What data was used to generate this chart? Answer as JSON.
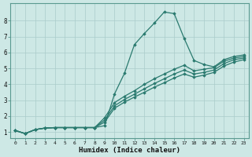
{
  "bg_color": "#cde8e5",
  "grid_color": "#aaccca",
  "line_color": "#2a7a6f",
  "line_width": 0.9,
  "marker": "D",
  "marker_size": 1.8,
  "xlabel": "Humidex (Indice chaleur)",
  "xlabel_fontsize": 6.5,
  "ytick_labels": [
    "1",
    "2",
    "3",
    "4",
    "5",
    "6",
    "7",
    "8"
  ],
  "ytick_vals": [
    1,
    2,
    3,
    4,
    5,
    6,
    7,
    8
  ],
  "xtick_vals": [
    0,
    1,
    2,
    3,
    4,
    5,
    6,
    7,
    8,
    9,
    10,
    11,
    12,
    13,
    14,
    15,
    16,
    17,
    18,
    19,
    20,
    21,
    22,
    23
  ],
  "xlim": [
    -0.5,
    23.5
  ],
  "ylim": [
    0.6,
    9.1
  ],
  "series": [
    [
      1.1,
      0.9,
      1.15,
      1.25,
      1.28,
      1.28,
      1.28,
      1.28,
      1.28,
      1.4,
      3.4,
      4.7,
      6.5,
      7.2,
      7.85,
      8.55,
      8.45,
      6.9,
      5.5,
      5.25,
      5.1,
      5.55,
      5.75,
      5.85
    ],
    [
      1.1,
      0.9,
      1.15,
      1.25,
      1.28,
      1.28,
      1.28,
      1.28,
      1.28,
      1.9,
      2.85,
      3.25,
      3.6,
      4.0,
      4.35,
      4.65,
      4.95,
      5.2,
      4.85,
      4.95,
      5.05,
      5.45,
      5.65,
      5.75
    ],
    [
      1.1,
      0.9,
      1.15,
      1.25,
      1.28,
      1.28,
      1.28,
      1.28,
      1.28,
      1.75,
      2.65,
      3.05,
      3.38,
      3.72,
      4.05,
      4.35,
      4.65,
      4.9,
      4.65,
      4.75,
      4.9,
      5.3,
      5.55,
      5.65
    ],
    [
      1.1,
      0.9,
      1.15,
      1.25,
      1.28,
      1.28,
      1.28,
      1.28,
      1.28,
      1.62,
      2.5,
      2.88,
      3.2,
      3.5,
      3.82,
      4.1,
      4.4,
      4.65,
      4.45,
      4.58,
      4.75,
      5.15,
      5.4,
      5.55
    ]
  ]
}
